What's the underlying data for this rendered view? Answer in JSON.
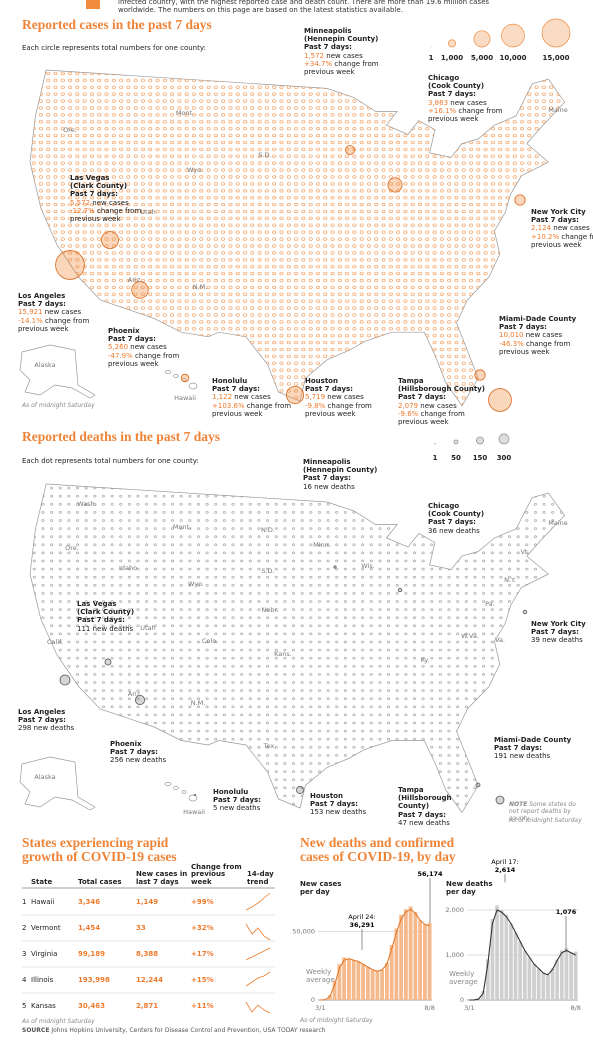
{
  "intro": "infected country, with the highest reported case and death count. There are more than 19.6 million cases worldwide. The numbers on this page are based on the latest statistics available.",
  "cases_map": {
    "title": "Reported cases in the past 7 days",
    "subtitle": "Each circle represents total numbers for one county:",
    "color": "#f08a3c",
    "legend": [
      1,
      {
        "value": 1000,
        "label": "1,000"
      },
      {
        "value": 5000,
        "label": "5,000"
      },
      {
        "value": 10000,
        "label": "10,000"
      },
      {
        "value": 15000,
        "label": "15,000"
      }
    ],
    "callouts": [
      {
        "place": "Minneapolis",
        "sub": "(Hennepin County)",
        "period": "Past 7 days:",
        "value": {
          "value": 1572,
          "label": "1,572"
        },
        "unit": "new cases",
        "change": "+34.7%",
        "change_text": "change from previous week"
      },
      {
        "place": "Chicago",
        "sub": "(Cook County)",
        "period": "Past 7 days:",
        "value": {
          "value": 3863,
          "label": "3,863"
        },
        "unit": "new cases",
        "change": "+16.1%",
        "change_text": "change from previous week"
      },
      {
        "place": "Las Vegas",
        "sub": "(Clark County)",
        "period": "Past 7 days:",
        "value": {
          "value": 5572,
          "label": "5,572"
        },
        "unit": "new cases",
        "change": "-12.7%",
        "change_text": "change from previous week"
      },
      {
        "place": "New York City",
        "period": "Past 7 days:",
        "value": {
          "value": 2124,
          "label": "2,124"
        },
        "unit": "new cases",
        "change": "+10.2%",
        "change_text": "change from previous week"
      },
      {
        "place": "Los Angeles",
        "period": "Past 7 days:",
        "value": {
          "value": 15921,
          "label": "15,921"
        },
        "unit": "new cases",
        "change": "-14.1%",
        "change_text": "change from previous week"
      },
      {
        "place": "Phoenix",
        "period": "Past 7 days:",
        "value": {
          "value": 5260,
          "label": "5,260"
        },
        "unit": "new cases",
        "change": "-47.9%",
        "change_text": "change from previous week"
      },
      {
        "place": "Miami-Dade County",
        "period": "Past 7 days:",
        "value": {
          "value": 10010,
          "label": "10,010"
        },
        "unit": "new cases",
        "change": "-46.3%",
        "change_text": "change from previous week"
      },
      {
        "place": "Honolulu",
        "period": "Past 7 days:",
        "value": {
          "value": 1122,
          "label": "1,122"
        },
        "unit": "new cases",
        "change": "+103.6%",
        "change_text": "change from previous week"
      },
      {
        "place": "Houston",
        "period": "Past 7 days:",
        "value": {
          "value": 5719,
          "label": "5,719"
        },
        "unit": "new cases",
        "change": "-9.8%",
        "change_text": "change from previous week"
      },
      {
        "place": "Tampa",
        "sub": "(Hillsborough County)",
        "period": "Past 7 days:",
        "value": {
          "value": 2079,
          "label": "2,079"
        },
        "unit": "new cases",
        "change": "-9.6%",
        "change_text": "change from previous week"
      }
    ],
    "states": [
      "Ore.",
      "Mont.",
      "Wyo.",
      "S.D.",
      "Utah",
      "Ariz.",
      "N.M.",
      "Maine",
      "Alaska",
      "Hawaii"
    ],
    "note": "As of midnight Saturday"
  },
  "deaths_map": {
    "title": "Reported deaths in the past 7 days",
    "subtitle": "Each dot represents total numbers for one county:",
    "color": "#8a8a8a",
    "legend": [
      1,
      50,
      150,
      300
    ],
    "callouts": [
      {
        "place": "Minneapolis",
        "sub": "(Hennepin County)",
        "period": "Past 7 days:",
        "value": 16,
        "unit": "new deaths"
      },
      {
        "place": "Chicago",
        "sub": "(Cook County)",
        "period": "Past 7 days:",
        "value": 36,
        "unit": "new deaths"
      },
      {
        "place": "Las Vegas",
        "sub": "(Clark County)",
        "period": "Past 7 days:",
        "value": 111,
        "unit": "new deaths"
      },
      {
        "place": "New York City",
        "period": "Past 7 days:",
        "value": 39,
        "unit": "new deaths"
      },
      {
        "place": "Los Angeles",
        "period": "Past 7 days:",
        "value": 298,
        "unit": "new deaths"
      },
      {
        "place": "Phoenix",
        "period": "Past 7 days:",
        "value": 256,
        "unit": "new deaths"
      },
      {
        "place": "Miami-Dade County",
        "period": "Past 7 days:",
        "value": 191,
        "unit": "new deaths"
      },
      {
        "place": "Honolulu",
        "period": "Past 7 days:",
        "value": 5,
        "unit": "new deaths"
      },
      {
        "place": "Houston",
        "period": "Past 7 days:",
        "value": 153,
        "unit": "new deaths"
      },
      {
        "place": "Tampa",
        "sub": "(Hillsborough County)",
        "period": "Past 7 days:",
        "value": 47,
        "unit": "new deaths"
      }
    ],
    "states": [
      "Wash.",
      "Mont.",
      "N.D.",
      "Minn.",
      "Ore.",
      "Idaho",
      "S.D.",
      "Wyo.",
      "Nebr.",
      "Utah",
      "Colo.",
      "Calif.",
      "Kans.",
      "Ariz.",
      "N.M.",
      "Tex.",
      "Wis.",
      "Pa.",
      "N.Y.",
      "Vt.",
      "Maine",
      "W.Va.",
      "Va.",
      "Ky.",
      "Alaska",
      "Hawaii"
    ],
    "note_label": "NOTE",
    "note": "Some states do not report deaths by county",
    "as_of": "As of midnight Saturday"
  },
  "table": {
    "title": "States experiencing rapid growth of COVID-19 cases",
    "header": [
      "State",
      "Total cases",
      "New cases in last 7 days",
      "Change from previous week",
      "14-day trend"
    ],
    "rows": [
      [
        "1",
        "Hawaii",
        "3,346",
        "1,149",
        "+99%"
      ],
      [
        "2",
        "Vermont",
        "1,454",
        "33",
        "+32%"
      ],
      [
        "3",
        "Virginia",
        "99,189",
        "8,388",
        "+17%"
      ],
      [
        "4",
        "Illinois",
        "193,998",
        "12,244",
        "+15%"
      ],
      [
        "5",
        "Kansas",
        "30,463",
        "2,871",
        "+11%"
      ]
    ],
    "note": "As of midnight Saturday"
  },
  "charts_title": "New deaths and confirmed cases of COVID-19, by day",
  "chart_data": [
    {
      "type": "bar",
      "ylabel": "New cases per day",
      "color": "#f6b98c",
      "categories": [
        "3/1",
        null,
        null,
        null,
        null,
        null,
        null,
        null,
        null,
        null,
        null,
        null,
        null,
        null,
        null,
        null,
        null,
        null,
        null,
        null,
        null,
        null,
        null,
        "8/8"
      ],
      "values": [
        0,
        300,
        3500,
        14000,
        26000,
        31000,
        30000,
        29000,
        28000,
        26000,
        24000,
        22000,
        21000,
        22000,
        27000,
        40000,
        52000,
        62000,
        66000,
        68000,
        64000,
        58000,
        55000,
        56174
      ],
      "series": [
        {
          "name": "Weekly average",
          "color": "#e4782a",
          "values": [
            0,
            200,
            2500,
            11000,
            23000,
            29000,
            30000,
            29000,
            28000,
            26000,
            24000,
            22000,
            21000,
            22000,
            26000,
            37000,
            49000,
            59000,
            64000,
            66000,
            63000,
            58000,
            55000,
            54000
          ]
        }
      ],
      "ylim": [
        0,
        80000
      ],
      "yticks": [
        0,
        {
          "value": 50000,
          "label": "50,000"
        }
      ],
      "annotations": [
        {
          "value": 56174,
          "label": "56,174"
        },
        {
          "text": "April 24:",
          "value": 36291,
          "label": "36,291"
        }
      ]
    },
    {
      "type": "bar",
      "ylabel": "New deaths per day",
      "color": "#cfcfcf",
      "categories": [
        "3/1",
        null,
        null,
        null,
        null,
        null,
        null,
        null,
        null,
        null,
        null,
        null,
        null,
        null,
        null,
        null,
        null,
        null,
        null,
        null,
        null,
        null,
        null,
        "8/8"
      ],
      "values": [
        0,
        2,
        30,
        200,
        900,
        1800,
        2100,
        2000,
        1900,
        1700,
        1500,
        1300,
        1100,
        950,
        800,
        700,
        600,
        550,
        700,
        900,
        1100,
        1150,
        1050,
        1076
      ],
      "series": [
        {
          "name": "Weekly average",
          "color": "#333333",
          "values": [
            0,
            1,
            20,
            150,
            800,
            1700,
            2000,
            1950,
            1850,
            1700,
            1500,
            1300,
            1100,
            950,
            800,
            700,
            600,
            560,
            680,
            880,
            1050,
            1100,
            1050,
            1000
          ]
        }
      ],
      "ylim": [
        0,
        3000
      ],
      "yticks": [
        0,
        {
          "value": 1000,
          "label": "1,000"
        },
        {
          "value": 2000,
          "label": "2,000"
        }
      ],
      "annotations": [
        {
          "text": "April 17:",
          "value": 2614,
          "label": "2,614"
        },
        {
          "value": 1076,
          "label": "1,076"
        }
      ]
    }
  ],
  "chart_note": "As of midnight Saturday",
  "source_label": "SOURCE",
  "source": "Johns Hopkins University, Centers for Disease Control and Prevention, USA TODAY research"
}
